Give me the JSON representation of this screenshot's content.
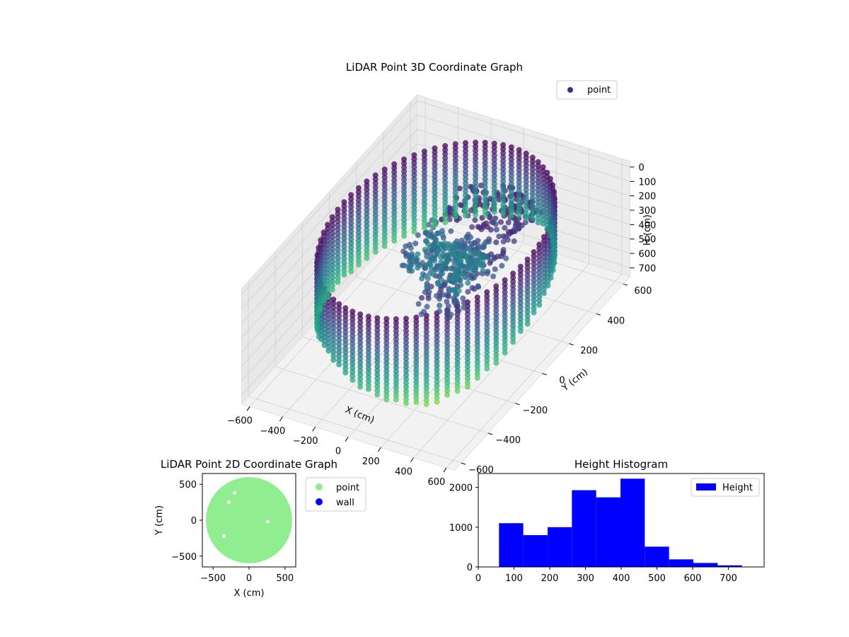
{
  "chart_data": [
    {
      "type": "scatter3d",
      "title": "LiDAR Point 3D Coordinate Graph",
      "xlabel": "X (cm)",
      "ylabel": "Y (cm)",
      "zlabel": "H (cm)",
      "xticks": [
        -600,
        -400,
        -200,
        0,
        200,
        400,
        600
      ],
      "yticks": [
        -600,
        -400,
        -200,
        0,
        200,
        400,
        600
      ],
      "zticks": [
        0,
        100,
        200,
        300,
        400,
        500,
        600,
        700
      ],
      "xlim": [
        -650,
        650
      ],
      "ylim": [
        -650,
        650
      ],
      "zlim": [
        760,
        0
      ],
      "zaxis_inverted": true,
      "colormap": "viridis",
      "legend": {
        "position": "top-right",
        "entries": [
          {
            "name": "point",
            "color": "#472c7a"
          }
        ]
      },
      "wall_radius": 560,
      "wall_height_range": [
        0,
        400
      ],
      "grid": true
    },
    {
      "type": "scatter",
      "title": "LiDAR Point 2D Coordinate Graph",
      "xlabel": "X (cm)",
      "ylabel": "Y (cm)",
      "xticks": [
        -500,
        0,
        500
      ],
      "yticks": [
        -500,
        0,
        500
      ],
      "xlim": [
        -650,
        650
      ],
      "ylim": [
        -650,
        650
      ],
      "region_radius": 600,
      "legend": {
        "position": "outside-right",
        "entries": [
          {
            "name": "point",
            "color": "#90ee90"
          },
          {
            "name": "wall",
            "color": "#0000ff"
          }
        ]
      }
    },
    {
      "type": "bar",
      "title": "Height Histogram",
      "xticks": [
        0,
        100,
        200,
        300,
        400,
        500,
        600,
        700
      ],
      "yticks": [
        0,
        1000,
        2000
      ],
      "xlim": [
        0,
        800
      ],
      "ylim": [
        0,
        2350
      ],
      "bin_edges": [
        58,
        126,
        194,
        262,
        330,
        398,
        466,
        534,
        602,
        670,
        738
      ],
      "values": [
        1100,
        800,
        1000,
        1930,
        1750,
        2220,
        510,
        190,
        100,
        40
      ],
      "color": "#0000ff",
      "legend": {
        "position": "top-right",
        "entries": [
          {
            "name": "Height",
            "color": "#0000ff"
          }
        ]
      }
    }
  ]
}
